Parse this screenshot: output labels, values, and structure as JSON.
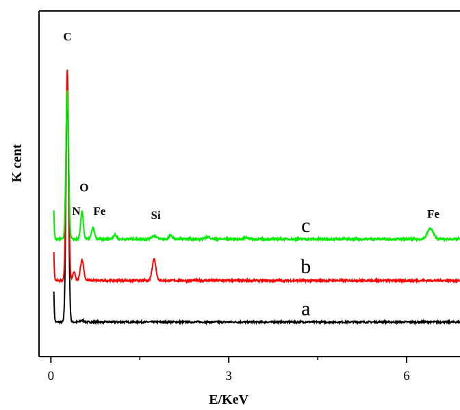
{
  "chart_data": {
    "type": "line",
    "title": "",
    "xlabel": "E/KeV",
    "ylabel": "K cent",
    "xlim": [
      -0.2,
      6.9
    ],
    "ylim": [
      0,
      100
    ],
    "xticks": [
      0,
      3,
      6
    ],
    "xtick_labels": [
      "0",
      "3",
      "6"
    ],
    "grid": false,
    "legend": "none",
    "series": [
      {
        "name": "a",
        "color": "#000000",
        "baseline": 10.0,
        "noise": 0.25,
        "peaks": [
          {
            "x": 0.0,
            "height": 120,
            "width": 0.022
          },
          {
            "x": 0.277,
            "height": 70,
            "width": 0.022
          },
          {
            "x": 0.53,
            "height": 0.5,
            "width": 0.03
          }
        ]
      },
      {
        "name": "b",
        "color": "#ff0000",
        "baseline": 22.0,
        "noise": 0.3,
        "peaks": [
          {
            "x": 0.0,
            "height": 110,
            "width": 0.022
          },
          {
            "x": 0.277,
            "height": 61,
            "width": 0.022
          },
          {
            "x": 0.39,
            "height": 2.5,
            "width": 0.02
          },
          {
            "x": 0.525,
            "height": 6,
            "width": 0.028
          },
          {
            "x": 1.74,
            "height": 6.2,
            "width": 0.032
          }
        ]
      },
      {
        "name": "c",
        "color": "#00ee00",
        "baseline": 34.0,
        "noise": 0.3,
        "peaks": [
          {
            "x": 0.0,
            "height": 110,
            "width": 0.022
          },
          {
            "x": 0.277,
            "height": 43,
            "width": 0.022
          },
          {
            "x": 0.525,
            "height": 8,
            "width": 0.022
          },
          {
            "x": 0.71,
            "height": 3.2,
            "width": 0.025
          },
          {
            "x": 1.08,
            "height": 1.2,
            "width": 0.03
          },
          {
            "x": 1.74,
            "height": 1.0,
            "width": 0.04
          },
          {
            "x": 2.02,
            "height": 1.0,
            "width": 0.03
          },
          {
            "x": 2.65,
            "height": 0.6,
            "width": 0.04
          },
          {
            "x": 3.3,
            "height": 0.4,
            "width": 0.04
          },
          {
            "x": 6.4,
            "height": 3.0,
            "width": 0.05
          }
        ]
      }
    ],
    "peak_labels": [
      {
        "text": "C",
        "x": 0.28,
        "y": 91.5
      },
      {
        "text": "O",
        "x": 0.56,
        "y": 47.8
      },
      {
        "text": "N",
        "x": 0.43,
        "y": 41.0
      },
      {
        "text": "Fe",
        "x": 0.82,
        "y": 41.0
      },
      {
        "text": "Si",
        "x": 1.77,
        "y": 39.8
      },
      {
        "text": "Fe",
        "x": 6.45,
        "y": 40.2
      }
    ],
    "series_labels": [
      {
        "text": "c",
        "x": 4.3,
        "y": 36.0
      },
      {
        "text": "b",
        "x": 4.3,
        "y": 24.2
      },
      {
        "text": "a",
        "x": 4.3,
        "y": 12.0
      }
    ]
  }
}
